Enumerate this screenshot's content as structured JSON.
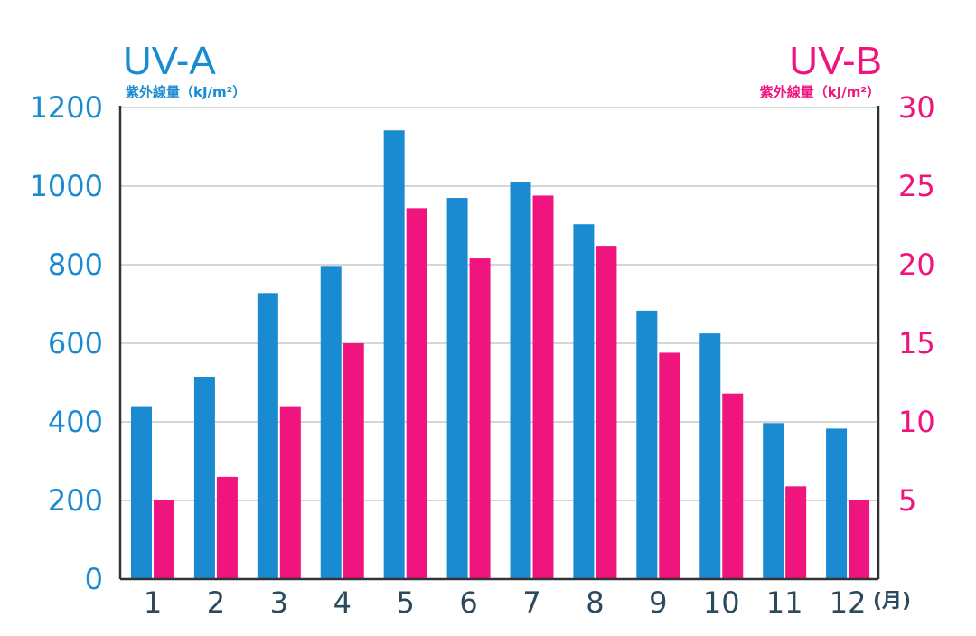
{
  "chart_data": {
    "type": "bar",
    "categories": [
      "1",
      "2",
      "3",
      "4",
      "5",
      "6",
      "7",
      "8",
      "9",
      "10",
      "11",
      "12"
    ],
    "x_unit": "(月)",
    "series": [
      {
        "name": "UV-A",
        "axis": "left",
        "color": "#1a8bd0",
        "values": [
          440,
          515,
          728,
          797,
          1142,
          970,
          1010,
          903,
          683,
          625,
          397,
          383
        ]
      },
      {
        "name": "UV-B",
        "axis": "right",
        "color": "#f0147e",
        "values": [
          5,
          6.5,
          11,
          15,
          23.6,
          20.4,
          24.4,
          21.2,
          14.4,
          11.8,
          5.9,
          5
        ]
      }
    ],
    "left_axis": {
      "title": "UV-A",
      "unit": "紫外線量（kJ/m²）",
      "ylim": [
        0,
        1200
      ],
      "ticks": [
        0,
        200,
        400,
        600,
        800,
        1000,
        1200
      ]
    },
    "right_axis": {
      "title": "UV-B",
      "unit": "紫外線量（kJ/m²）",
      "ylim": [
        0,
        30
      ],
      "ticks": [
        5,
        10,
        15,
        20,
        25,
        30
      ]
    },
    "grid": true
  }
}
